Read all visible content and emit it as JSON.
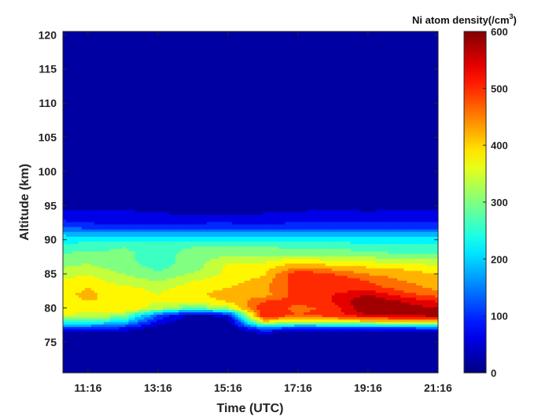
{
  "chart_data": {
    "type": "heatmap",
    "subtype": "filled-contour",
    "title": "",
    "xlabel": "Time (UTC)",
    "ylabel": "Altitude (km)",
    "x_tick_labels": [
      "11:16",
      "13:16",
      "15:16",
      "17:16",
      "19:16",
      "21:16"
    ],
    "x_ticks_hours": [
      11.2667,
      13.2667,
      15.2667,
      17.2667,
      19.2667,
      21.2667
    ],
    "xlim": [
      10.55,
      21.27
    ],
    "y_ticks": [
      75,
      80,
      85,
      90,
      95,
      100,
      105,
      110,
      115,
      120
    ],
    "ylim": [
      70.5,
      120.5
    ],
    "colorbar": {
      "label_main": "Ni atom density(/cm",
      "label_sup": "3",
      "label_end": ")",
      "range": [
        0,
        600
      ],
      "ticks": [
        0,
        100,
        200,
        300,
        400,
        500,
        600
      ],
      "colormap": "jet",
      "levels": [
        0,
        40,
        80,
        120,
        160,
        200,
        240,
        280,
        320,
        360,
        400,
        440,
        480,
        520,
        560,
        600
      ]
    },
    "x_hours": [
      10.55,
      11.27,
      12.27,
      13.27,
      14.27,
      15.27,
      16.27,
      17.27,
      18.27,
      19.27,
      20.27,
      21.27
    ],
    "y_km": [
      70,
      72,
      74,
      76,
      77,
      78,
      79,
      80,
      81,
      82,
      83,
      84,
      85,
      86,
      87,
      88,
      89,
      90,
      91,
      92,
      93,
      94,
      95,
      97,
      100,
      105,
      110,
      115,
      120.5
    ],
    "density": [
      [
        0,
        0,
        0,
        0,
        0,
        0,
        0,
        0,
        0,
        0,
        0,
        0
      ],
      [
        0,
        0,
        0,
        0,
        0,
        0,
        0,
        0,
        0,
        0,
        0,
        0
      ],
      [
        0,
        0,
        0,
        0,
        0,
        0,
        0,
        0,
        0,
        0,
        0,
        0
      ],
      [
        0,
        0,
        0,
        0,
        0,
        0,
        0,
        0,
        0,
        0,
        0,
        0
      ],
      [
        100,
        90,
        60,
        10,
        0,
        0,
        120,
        60,
        70,
        80,
        80,
        100
      ],
      [
        260,
        250,
        200,
        60,
        10,
        10,
        380,
        350,
        360,
        370,
        380,
        400
      ],
      [
        360,
        350,
        320,
        120,
        20,
        60,
        520,
        480,
        500,
        560,
        580,
        580
      ],
      [
        370,
        380,
        390,
        340,
        260,
        330,
        520,
        460,
        500,
        600,
        580,
        560
      ],
      [
        380,
        400,
        390,
        360,
        380,
        400,
        480,
        500,
        520,
        600,
        560,
        520
      ],
      [
        390,
        410,
        380,
        360,
        390,
        420,
        420,
        500,
        520,
        560,
        500,
        460
      ],
      [
        380,
        400,
        370,
        350,
        380,
        400,
        430,
        500,
        500,
        500,
        460,
        430
      ],
      [
        370,
        380,
        340,
        320,
        360,
        380,
        420,
        500,
        520,
        480,
        440,
        420
      ],
      [
        340,
        360,
        320,
        290,
        330,
        370,
        390,
        520,
        480,
        440,
        420,
        400
      ],
      [
        320,
        330,
        300,
        270,
        300,
        370,
        380,
        440,
        420,
        400,
        390,
        370
      ],
      [
        300,
        310,
        290,
        260,
        300,
        350,
        350,
        380,
        360,
        350,
        340,
        330
      ],
      [
        280,
        290,
        285,
        270,
        290,
        300,
        300,
        300,
        300,
        290,
        280,
        280
      ],
      [
        260,
        265,
        280,
        270,
        280,
        285,
        280,
        275,
        270,
        265,
        260,
        260
      ],
      [
        225,
        225,
        225,
        230,
        228,
        228,
        230,
        230,
        225,
        220,
        218,
        218
      ],
      [
        190,
        180,
        175,
        175,
        175,
        170,
        175,
        180,
        170,
        165,
        170,
        180
      ],
      [
        115,
        95,
        90,
        95,
        95,
        100,
        95,
        100,
        100,
        100,
        100,
        100
      ],
      [
        75,
        65,
        60,
        62,
        62,
        58,
        55,
        62,
        65,
        60,
        62,
        75
      ],
      [
        50,
        50,
        50,
        40,
        32,
        30,
        38,
        45,
        50,
        45,
        50,
        55
      ],
      [
        20,
        25,
        22,
        15,
        10,
        10,
        15,
        20,
        25,
        20,
        25,
        25
      ],
      [
        0,
        0,
        0,
        0,
        0,
        0,
        0,
        0,
        0,
        0,
        0,
        0
      ],
      [
        0,
        0,
        0,
        0,
        0,
        0,
        0,
        0,
        0,
        0,
        0,
        0
      ],
      [
        0,
        0,
        0,
        0,
        0,
        0,
        0,
        0,
        0,
        0,
        0,
        0
      ],
      [
        0,
        0,
        0,
        0,
        0,
        0,
        0,
        0,
        0,
        0,
        0,
        0
      ],
      [
        0,
        0,
        0,
        0,
        0,
        0,
        0,
        0,
        0,
        0,
        0,
        0
      ],
      [
        0,
        0,
        0,
        0,
        0,
        0,
        0,
        0,
        0,
        0,
        0,
        0
      ]
    ]
  }
}
